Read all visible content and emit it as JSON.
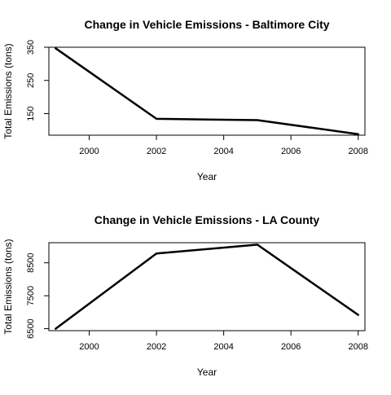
{
  "chart_data": [
    {
      "type": "line",
      "title": "Change in Vehicle Emissions - Baltimore City",
      "xlabel": "Year",
      "ylabel": "Total Emissions (tons)",
      "x": [
        1999,
        2002,
        2005,
        2008
      ],
      "series": [
        {
          "values": [
            346.8,
            134.3,
            130.4,
            88.3
          ]
        }
      ],
      "xlim": [
        1998.8,
        2008.2
      ],
      "ylim": [
        85,
        350
      ],
      "xticks": [
        2000,
        2002,
        2004,
        2006,
        2008
      ],
      "yticks": [
        150,
        250,
        350
      ],
      "ytick_labels": [
        "150",
        "250",
        "350"
      ],
      "grid": false,
      "line_color": "#000000"
    },
    {
      "type": "line",
      "title": "Change in Vehicle Emissions - LA County",
      "xlabel": "Year",
      "ylabel": "Total Emissions (tons)",
      "x": [
        1999,
        2002,
        2005,
        2008
      ],
      "series": [
        {
          "values": [
            6500,
            8780,
            9050,
            6920
          ]
        }
      ],
      "xlim": [
        1998.8,
        2008.2
      ],
      "ylim": [
        6440,
        9110
      ],
      "xticks": [
        2000,
        2002,
        2004,
        2006,
        2008
      ],
      "yticks": [
        6500,
        7500,
        8500
      ],
      "ytick_labels": [
        "6500",
        "7500",
        "8500"
      ],
      "grid": false,
      "line_color": "#000000"
    }
  ]
}
